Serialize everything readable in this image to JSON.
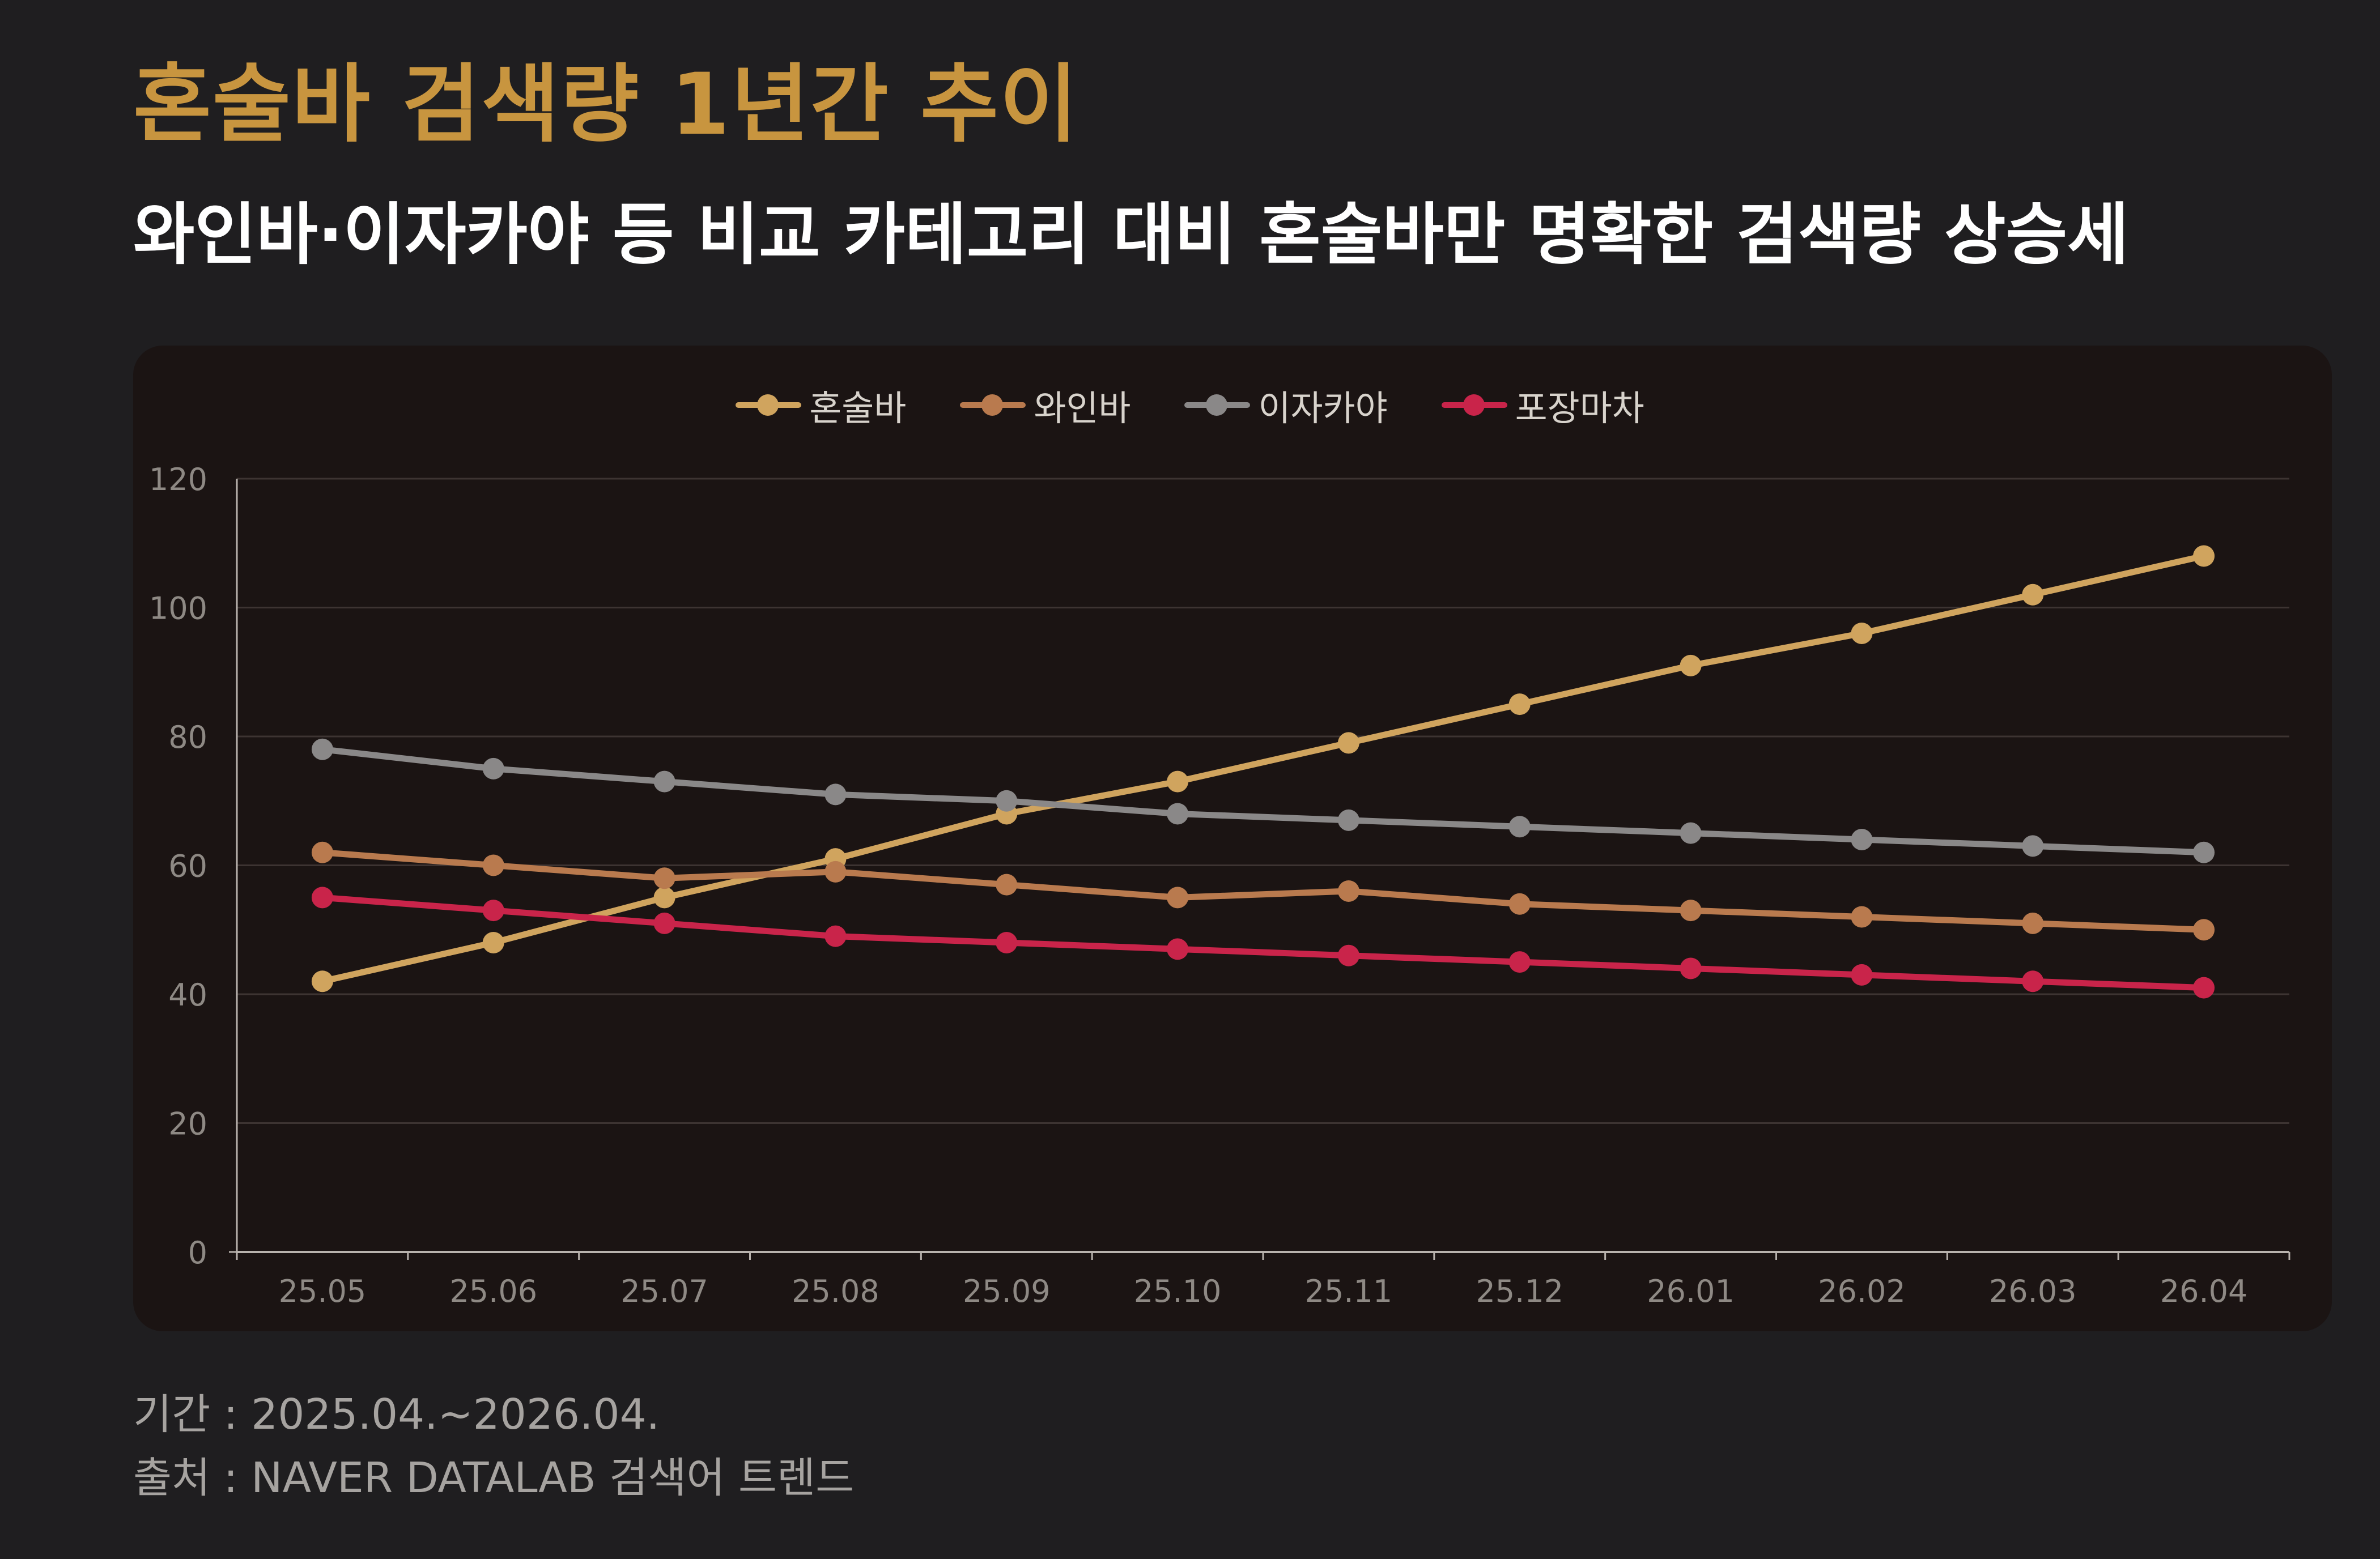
{
  "header": {
    "title": "혼술바 검색량 1년간 추이",
    "subtitle": "와인바·이자카야 등 비교 카테고리 대비 혼술바만 명확한 검색량 상승세"
  },
  "footer": {
    "period": "기간 : 2025.04.~2026.04.",
    "source": "출처 : NAVER DATALAB 검색어 트렌드"
  },
  "chart_data": {
    "type": "line",
    "categories": [
      "25.05",
      "25.06",
      "25.07",
      "25.08",
      "25.09",
      "25.10",
      "25.11",
      "25.12",
      "26.01",
      "26.02",
      "26.03",
      "26.04"
    ],
    "ylim": [
      0,
      120
    ],
    "yticks": [
      0,
      20,
      40,
      60,
      80,
      100,
      120
    ],
    "grid": true,
    "legend_position": "top-center",
    "series": [
      {
        "name": "혼술바",
        "color": "#d0a45e",
        "values": [
          42,
          48,
          55,
          61,
          68,
          73,
          79,
          85,
          91,
          96,
          102,
          108
        ]
      },
      {
        "name": "와인바",
        "color": "#b97a4e",
        "values": [
          62,
          60,
          58,
          59,
          57,
          55,
          56,
          54,
          53,
          52,
          51,
          50
        ]
      },
      {
        "name": "이자카야",
        "color": "#8a8888",
        "values": [
          78,
          75,
          73,
          71,
          70,
          68,
          67,
          66,
          65,
          64,
          63,
          62
        ]
      },
      {
        "name": "포장마차",
        "color": "#c9244a",
        "values": [
          55,
          53,
          51,
          49,
          48,
          47,
          46,
          45,
          44,
          43,
          42,
          41
        ]
      }
    ]
  }
}
